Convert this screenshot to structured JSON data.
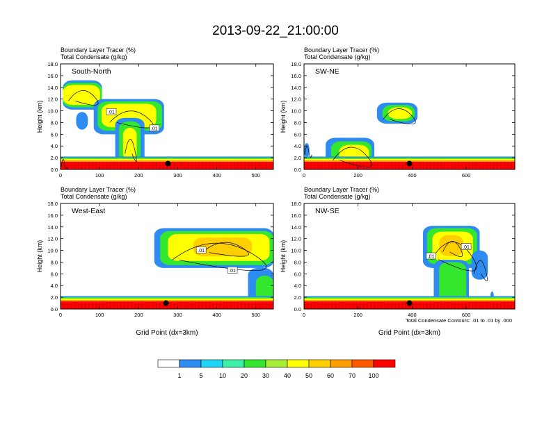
{
  "title": "2013-09-22_21:00:00",
  "colorbar": {
    "labels": [
      "1",
      "5",
      "10",
      "20",
      "30",
      "40",
      "50",
      "60",
      "70",
      "100"
    ],
    "colors": [
      "#ffffff",
      "#2e8cf0",
      "#1fd4f5",
      "#3ef0a8",
      "#33e62e",
      "#a8f038",
      "#ffff00",
      "#ffcf00",
      "#ff9e00",
      "#ff5a00",
      "#ff0000"
    ]
  },
  "contour_note": "Total Condensate Contours: .01 to .01 by .000",
  "chart_data": [
    {
      "type": "contour",
      "name": "South-North",
      "subtitle_1": "Boundary Layer Tracer   (%)",
      "subtitle_2": "Total Condensate   (g/kg)",
      "ylabel": "Height (km)",
      "xlabel": "",
      "xlim": [
        0,
        545
      ],
      "ylim": [
        0,
        18
      ],
      "xticks": [
        "0",
        "100",
        "200",
        "300",
        "400",
        "500"
      ],
      "yticks": [
        "0.0",
        "2.0",
        "4.0",
        "6.0",
        "8.0",
        "10.0",
        "12.0",
        "14.0",
        "16.0",
        "18.0"
      ],
      "marker": {
        "x": 275,
        "y": 1.0
      },
      "contour_labels": [
        {
          "text": ".01",
          "x": 130,
          "y": 9.8
        },
        {
          "text": ".01",
          "x": 240,
          "y": 7.0
        }
      ],
      "blobs": [
        {
          "x": 0,
          "w": 12,
          "y": 0,
          "h": 2.0,
          "color": "#ff0000"
        },
        {
          "x": 6,
          "w": 100,
          "y": 10.2,
          "h": 5.0,
          "color": "#2e8cf0"
        },
        {
          "x": 6,
          "w": 100,
          "y": 10.6,
          "h": 4.2,
          "color": "#33e62e"
        },
        {
          "x": 6,
          "w": 95,
          "y": 11.0,
          "h": 3.4,
          "color": "#ffff00"
        },
        {
          "x": 85,
          "w": 180,
          "y": 6.0,
          "h": 6.0,
          "color": "#2e8cf0"
        },
        {
          "x": 95,
          "w": 165,
          "y": 6.6,
          "h": 5.0,
          "color": "#33e62e"
        },
        {
          "x": 105,
          "w": 140,
          "y": 7.2,
          "h": 4.0,
          "color": "#ffff00"
        },
        {
          "x": 140,
          "w": 75,
          "y": 0.8,
          "h": 8.0,
          "color": "#2e8cf0"
        },
        {
          "x": 150,
          "w": 55,
          "y": 1.2,
          "h": 7.0,
          "color": "#33e62e"
        },
        {
          "x": 160,
          "w": 35,
          "y": 1.6,
          "h": 5.5,
          "color": "#ffff00"
        },
        {
          "x": 40,
          "w": 30,
          "y": 6.8,
          "h": 3.0,
          "color": "#2e8cf0"
        }
      ]
    },
    {
      "type": "contour",
      "name": "SW-NE",
      "subtitle_1": "Boundary Layer Tracer   (%)",
      "subtitle_2": "Total Condensate   (g/kg)",
      "ylabel": "Height (km)",
      "xlabel": "",
      "xlim": [
        0,
        780
      ],
      "ylim": [
        0,
        18
      ],
      "xticks": [
        "0",
        "200",
        "400",
        "600"
      ],
      "yticks": [
        "0.0",
        "2.0",
        "4.0",
        "6.0",
        "8.0",
        "10.0",
        "12.0",
        "14.0",
        "16.0",
        "18.0"
      ],
      "marker": {
        "x": 390,
        "y": 1.0
      },
      "contour_labels": [],
      "blobs": [
        {
          "x": 270,
          "w": 150,
          "y": 7.8,
          "h": 3.6,
          "color": "#2e8cf0"
        },
        {
          "x": 290,
          "w": 120,
          "y": 8.2,
          "h": 2.8,
          "color": "#33e62e"
        },
        {
          "x": 310,
          "w": 90,
          "y": 8.6,
          "h": 2.0,
          "color": "#ffff00"
        },
        {
          "x": 80,
          "w": 180,
          "y": 0.6,
          "h": 4.8,
          "color": "#2e8cf0"
        },
        {
          "x": 100,
          "w": 150,
          "y": 0.9,
          "h": 3.9,
          "color": "#33e62e"
        },
        {
          "x": 130,
          "w": 110,
          "y": 1.2,
          "h": 3.0,
          "color": "#ffff00"
        },
        {
          "x": 0,
          "w": 20,
          "y": 2.0,
          "h": 2.5,
          "color": "#2e8cf0"
        }
      ]
    },
    {
      "type": "contour",
      "name": "West-East",
      "subtitle_1": "Boundary Layer Tracer   (%)",
      "subtitle_2": "Total Condensate   (g/kg)",
      "ylabel": "Height (km)",
      "xlabel": "Grid Point (dx=3km)",
      "xlim": [
        0,
        545
      ],
      "ylim": [
        0,
        18
      ],
      "xticks": [
        "0",
        "100",
        "200",
        "300",
        "400",
        "500"
      ],
      "yticks": [
        "0.0",
        "2.0",
        "4.0",
        "6.0",
        "8.0",
        "10.0",
        "12.0",
        "14.0",
        "16.0",
        "18.0"
      ],
      "marker": {
        "x": 270,
        "y": 1.0
      },
      "contour_labels": [
        {
          "text": ".01",
          "x": 360,
          "y": 10.0
        },
        {
          "text": ".01",
          "x": 440,
          "y": 6.6
        }
      ],
      "blobs": [
        {
          "x": 240,
          "w": 305,
          "y": 7.0,
          "h": 6.8,
          "color": "#2e8cf0"
        },
        {
          "x": 255,
          "w": 290,
          "y": 7.5,
          "h": 5.8,
          "color": "#33e62e"
        },
        {
          "x": 275,
          "w": 260,
          "y": 8.2,
          "h": 4.6,
          "color": "#ffff00"
        },
        {
          "x": 340,
          "w": 150,
          "y": 9.0,
          "h": 3.2,
          "color": "#ffcf00"
        },
        {
          "x": 480,
          "w": 65,
          "y": 0.5,
          "h": 6.5,
          "color": "#2e8cf0"
        },
        {
          "x": 500,
          "w": 45,
          "y": 0.7,
          "h": 5.0,
          "color": "#33e62e"
        }
      ]
    },
    {
      "type": "contour",
      "name": "NW-SE",
      "subtitle_1": "Boundary Layer Tracer   (%)",
      "subtitle_2": "Total Condensate   (g/kg)",
      "ylabel": "Height (km)",
      "xlabel": "Grid Point (dx=3km)",
      "xlim": [
        0,
        780
      ],
      "ylim": [
        0,
        18
      ],
      "xticks": [
        "0",
        "200",
        "400",
        "600"
      ],
      "yticks": [
        "0.0",
        "2.0",
        "4.0",
        "6.0",
        "8.0",
        "10.0",
        "12.0",
        "14.0",
        "16.0",
        "18.0"
      ],
      "marker": {
        "x": 390,
        "y": 1.0
      },
      "contour_labels": [
        {
          "text": ".01",
          "x": 470,
          "y": 9.0
        },
        {
          "text": ".01",
          "x": 600,
          "y": 10.6
        }
      ],
      "blobs": [
        {
          "x": 440,
          "w": 210,
          "y": 7.0,
          "h": 7.2,
          "color": "#2e8cf0"
        },
        {
          "x": 455,
          "w": 185,
          "y": 7.6,
          "h": 6.2,
          "color": "#33e62e"
        },
        {
          "x": 475,
          "w": 150,
          "y": 8.2,
          "h": 5.0,
          "color": "#ffff00"
        },
        {
          "x": 500,
          "w": 90,
          "y": 9.0,
          "h": 3.6,
          "color": "#ffcf00"
        },
        {
          "x": 480,
          "w": 130,
          "y": 0.4,
          "h": 8.0,
          "color": "#2e8cf0"
        },
        {
          "x": 500,
          "w": 100,
          "y": 0.6,
          "h": 7.4,
          "color": "#33e62e"
        },
        {
          "x": 620,
          "w": 60,
          "y": 5.0,
          "h": 5.0,
          "color": "#2e8cf0"
        },
        {
          "x": 690,
          "w": 12,
          "y": 1.6,
          "h": 1.4,
          "color": "#2e8cf0"
        },
        {
          "x": 740,
          "w": 40,
          "y": 0.4,
          "h": 1.2,
          "color": "#2e8cf0"
        }
      ]
    }
  ]
}
